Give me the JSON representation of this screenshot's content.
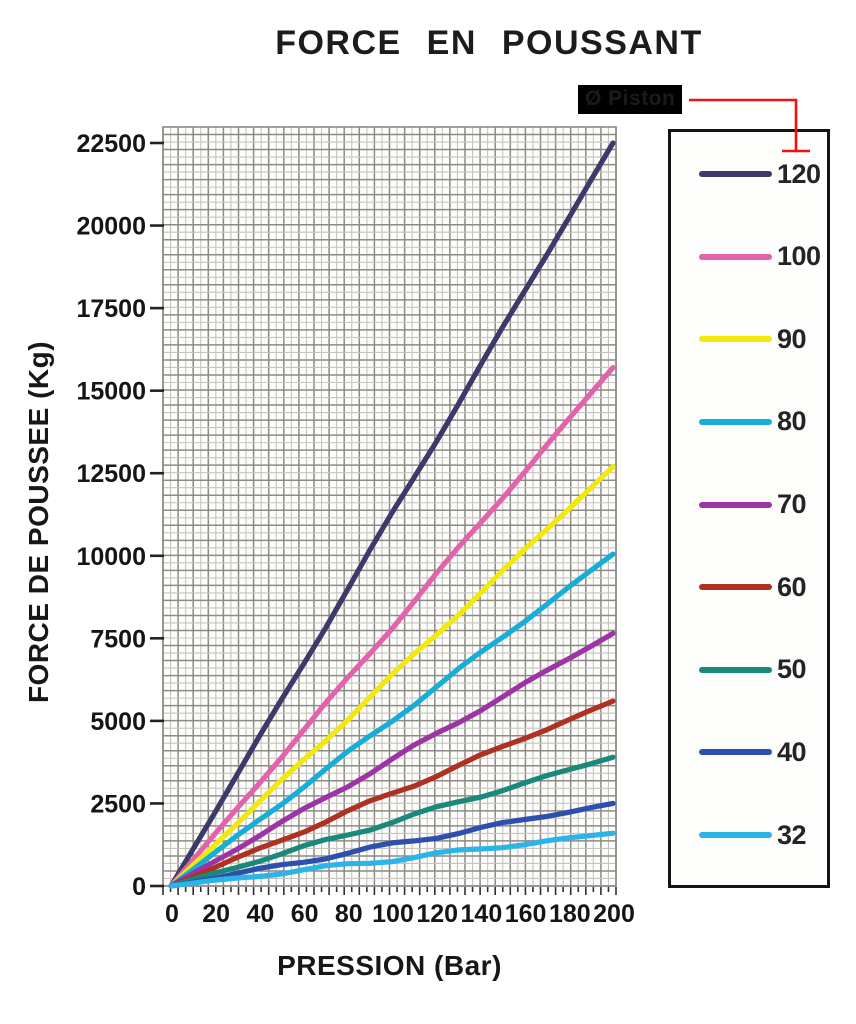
{
  "annotation": {
    "label": "Ø Piston",
    "color": "#ee1111",
    "background": "#000000"
  },
  "chart_data": {
    "type": "line",
    "title": "FORCE EN POUSSANT",
    "xlabel": "PRESSION (Bar)",
    "ylabel": "FORCE DE POUSSEE (Kg)",
    "xlim": [
      0,
      200
    ],
    "ylim": [
      0,
      22500
    ],
    "x_ticks": [
      0,
      20,
      40,
      60,
      80,
      100,
      120,
      140,
      160,
      180,
      200
    ],
    "y_ticks": [
      0,
      2500,
      5000,
      7500,
      10000,
      12500,
      15000,
      17500,
      20000,
      22500
    ],
    "grid": "graph-paper",
    "grid_colors": {
      "major": "#8d8a85",
      "minor": "#c7c4bf"
    },
    "legend_title": "Ø Piston",
    "legend_position": "right",
    "x": [
      0,
      20,
      40,
      60,
      80,
      100,
      120,
      140,
      160,
      180,
      200
    ],
    "series": [
      {
        "name": "120",
        "color": "#3b3a6a",
        "values": [
          0,
          2250,
          4500,
          6750,
          9000,
          11250,
          13500,
          15750,
          18000,
          20250,
          22500
        ]
      },
      {
        "name": "100",
        "color": "#e263ab",
        "values": [
          0,
          1570,
          3140,
          4710,
          6280,
          7850,
          9420,
          10990,
          12560,
          14130,
          15700
        ]
      },
      {
        "name": "90",
        "color": "#f2e80c",
        "values": [
          0,
          1270,
          2540,
          3810,
          5080,
          6350,
          7620,
          8890,
          10160,
          11430,
          12700
        ]
      },
      {
        "name": "80",
        "color": "#16aed6",
        "values": [
          0,
          1005,
          2010,
          3015,
          4020,
          5025,
          6030,
          7035,
          8040,
          9045,
          10050
        ]
      },
      {
        "name": "70",
        "color": "#9c34a6",
        "values": [
          0,
          765,
          1530,
          2295,
          3060,
          3825,
          4590,
          5355,
          6120,
          6885,
          7650
        ]
      },
      {
        "name": "60",
        "color": "#ae3122",
        "values": [
          0,
          560,
          1120,
          1680,
          2240,
          2800,
          3360,
          3920,
          4480,
          5040,
          5600
        ]
      },
      {
        "name": "50",
        "color": "#19897b",
        "values": [
          0,
          390,
          780,
          1170,
          1560,
          1950,
          2340,
          2730,
          3120,
          3510,
          3900
        ]
      },
      {
        "name": "40",
        "color": "#2d4fae",
        "values": [
          0,
          250,
          500,
          750,
          1000,
          1250,
          1500,
          1750,
          2000,
          2250,
          2500
        ]
      },
      {
        "name": "32",
        "color": "#2ab4e8",
        "values": [
          0,
          160,
          320,
          480,
          640,
          800,
          960,
          1120,
          1280,
          1440,
          1600
        ]
      }
    ]
  }
}
